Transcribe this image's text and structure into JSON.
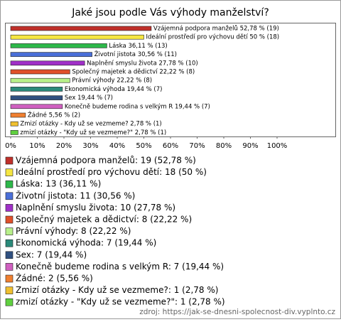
{
  "chart_data": {
    "type": "bar",
    "orientation": "horizontal",
    "title": "Jaké jsou podle Vás výhody manželství?",
    "categories": [
      "Vzájemná podpora manželů",
      "Ideální prostředí pro výchovu dětí",
      "Láska",
      "Životní jistota",
      "Naplnění smyslu života",
      "Společný majetek a dědictví",
      "Právní výhody",
      "Ekonomická výhoda",
      "Sex",
      "Konečně budeme rodina s velkým R",
      "Žádné",
      "Zmizí otázky - Kdy už se vezmeme?",
      "zmizí otázky - \"Kdy už se vezmeme?\""
    ],
    "values": [
      52.78,
      50,
      36.11,
      30.56,
      27.78,
      22.22,
      22.22,
      19.44,
      19.44,
      19.44,
      5.56,
      2.78,
      2.78
    ],
    "value_labels": [
      "Vzájemná podpora manželů 52,78 % (19)",
      "Ideální prostředí pro výchovu dětí 50 % (18)",
      "Láska 36,11 % (13)",
      "Životní jistota 30,56 % (11)",
      "Naplnění smyslu života 27,78 % (10)",
      "Společný majetek a dědictví 22,22 % (8)",
      "Právní výhody 22,22 % (8)",
      "Ekonomická výhoda 19,44 % (7)",
      "Sex 19,44 % (7)",
      "Konečně budeme rodina s velkým R 19,44 % (7)",
      "Žádné 5,56 % (2)",
      "Zmizí otázky - Kdy už se vezmeme? 2,78 % (1)",
      "zmizí otázky - \"Kdy už se vezmeme?\" 2,78 % (1)"
    ],
    "legend_labels": [
      "Vzájemná podpora manželů: 19 (52,78 %)",
      "Ideální prostředí pro výchovu dětí: 18 (50 %)",
      "Láska: 13 (36,11 %)",
      "Životní jistota: 11 (30,56 %)",
      "Naplnění smyslu života: 10 (27,78 %)",
      "Společný majetek a dědictví: 8 (22,22 %)",
      "Právní výhody: 8 (22,22 %)",
      "Ekonomická výhoda: 7 (19,44 %)",
      "Sex: 7 (19,44 %)",
      "Konečně budeme rodina s velkým R: 7 (19,44 %)",
      "Žádné: 2 (5,56 %)",
      "Zmizí otázky - Kdy už se vezmeme?: 1 (2,78 %)",
      "zmizí otázky - \"Kdy už se vezmeme?\": 1 (2,78 %)"
    ],
    "colors": [
      "#c0302a",
      "#f5e642",
      "#2db84a",
      "#4a6fd8",
      "#a030c8",
      "#e0502a",
      "#b8f08a",
      "#2a8a7a",
      "#305080",
      "#d060c0",
      "#f08030",
      "#f0c030",
      "#60d040"
    ],
    "xlim": [
      0,
      100
    ],
    "xticks": [
      {
        "value": 0,
        "label": "0%"
      },
      {
        "value": 10,
        "label": "10%"
      },
      {
        "value": 20,
        "label": "20%"
      },
      {
        "value": 30,
        "label": "30%"
      },
      {
        "value": 40,
        "label": "40%"
      },
      {
        "value": 50,
        "label": "50%"
      },
      {
        "value": 60,
        "label": "60%"
      },
      {
        "value": 70,
        "label": "70%"
      },
      {
        "value": 80,
        "label": "80%"
      },
      {
        "value": 90,
        "label": "90%"
      },
      {
        "value": 100,
        "label": "100%"
      }
    ],
    "source": "zdroj: https://jak-se-dnesni-spolecnost-div.vyplnto.cz"
  }
}
